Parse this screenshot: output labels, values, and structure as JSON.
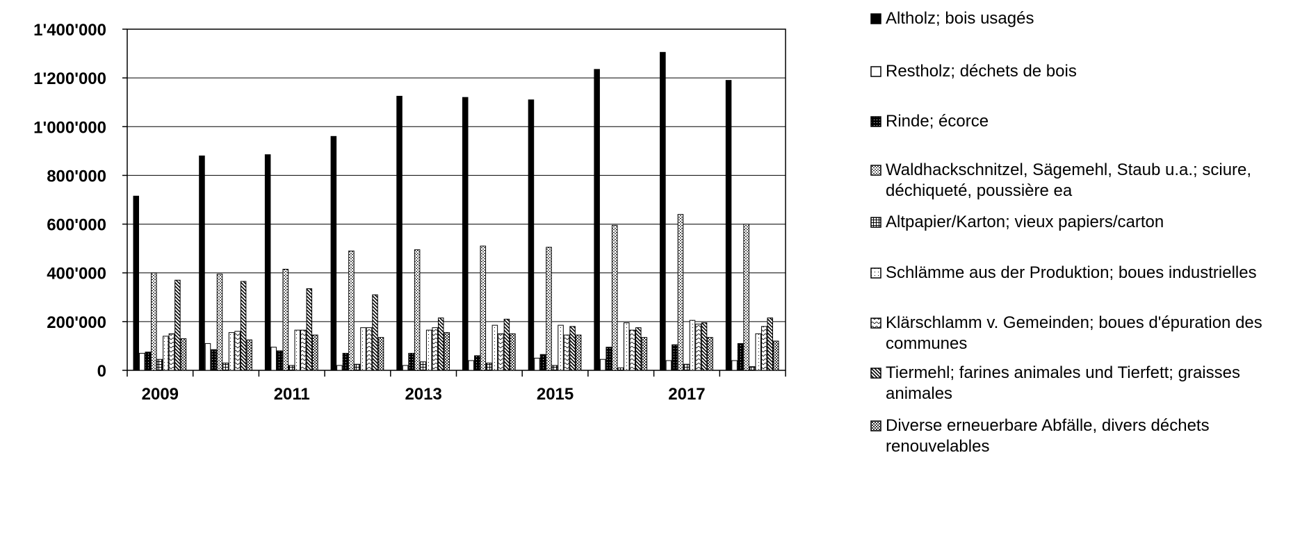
{
  "chart_data": {
    "type": "bar",
    "categories": [
      "2009",
      "2010",
      "2011",
      "2012",
      "2013",
      "2014",
      "2015",
      "2016",
      "2017",
      "2018"
    ],
    "x_tick_labels": [
      "2009",
      "",
      "2011",
      "",
      "2013",
      "",
      "2015",
      "",
      "2017",
      ""
    ],
    "y_tick_labels": [
      "0",
      "200'000",
      "400'000",
      "600'000",
      "800'000",
      "1'000'000",
      "1'200'000",
      "1'400'000"
    ],
    "ylim": [
      0,
      1400000
    ],
    "grid": true,
    "legend_position": "right",
    "title": "",
    "xlabel": "",
    "ylabel": "",
    "series": [
      {
        "name": "Altholz; bois usagés",
        "pattern": "solid",
        "values": [
          715000,
          880000,
          885000,
          960000,
          1125000,
          1120000,
          1110000,
          1235000,
          1305000,
          1190000
        ]
      },
      {
        "name": "Restholz; déchets de bois",
        "pattern": "white",
        "values": [
          70000,
          110000,
          95000,
          20000,
          20000,
          40000,
          50000,
          45000,
          40000,
          40000
        ]
      },
      {
        "name": "Rinde; écorce",
        "pattern": "dots-dark",
        "values": [
          75000,
          85000,
          80000,
          70000,
          70000,
          60000,
          65000,
          95000,
          105000,
          110000
        ]
      },
      {
        "name": "Waldhackschnitzel, Sägemehl, Staub u.a.; sciure, déchiqueté, poussière ea",
        "pattern": "hatch-dense",
        "values": [
          400000,
          395000,
          415000,
          490000,
          495000,
          510000,
          505000,
          595000,
          640000,
          600000
        ]
      },
      {
        "name": "Altpapier/Karton; vieux papiers/carton",
        "pattern": "grid",
        "values": [
          45000,
          30000,
          20000,
          25000,
          35000,
          30000,
          20000,
          10000,
          25000,
          15000
        ]
      },
      {
        "name": "Schlämme aus der Produktion; boues industrielles",
        "pattern": "dots-light",
        "values": [
          140000,
          155000,
          165000,
          175000,
          165000,
          185000,
          185000,
          195000,
          205000,
          150000
        ]
      },
      {
        "name": "Klärschlamm v. Gemeinden; boues d'épuration des communes",
        "pattern": "zigzag",
        "values": [
          150000,
          160000,
          165000,
          175000,
          175000,
          150000,
          145000,
          165000,
          190000,
          180000
        ]
      },
      {
        "name": "Tiermehl; farines animales und Tierfett; graisses animales",
        "pattern": "diag",
        "values": [
          370000,
          365000,
          335000,
          310000,
          215000,
          210000,
          180000,
          175000,
          195000,
          215000
        ]
      },
      {
        "name": "Diverse erneuerbare Abfälle, divers déchets renouvelables",
        "pattern": "checker",
        "values": [
          130000,
          125000,
          145000,
          135000,
          155000,
          150000,
          145000,
          135000,
          135000,
          120000
        ]
      }
    ]
  }
}
